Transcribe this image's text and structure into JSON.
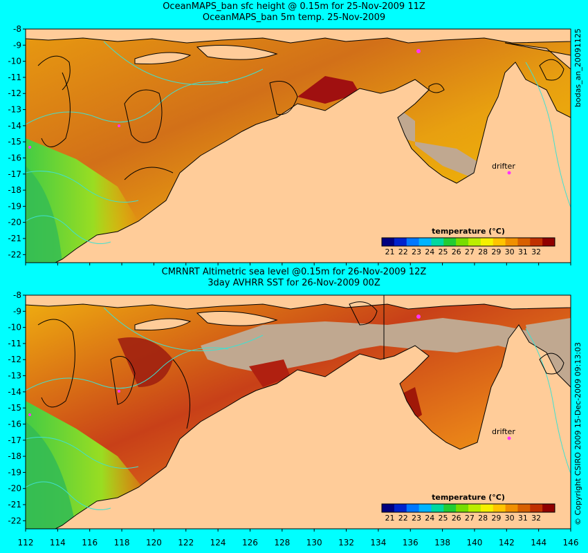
{
  "panels": [
    {
      "title_line1": "OceanMAPS_ban sfc height @ 0.15m for 25-Nov-2009 11Z",
      "title_line2": "OceanMAPS_ban 5m temp. 25-Nov-2009",
      "side_label": "bodas_an_20091125",
      "drifter_label": "drifter"
    },
    {
      "title_line1": "CMRNRT Altimetric sea level  @0.15m  for 26-Nov-2009 12Z",
      "title_line2": "3day AVHRR SST for 26-Nov-2009 00Z",
      "side_label": "© Copyright CSIRO 2009   15-Dec-2009 09:13:03",
      "drifter_label": "drifter"
    }
  ],
  "map": {
    "lon_range": [
      112,
      146
    ],
    "lat_range": [
      -22.5,
      -8
    ],
    "x_ticks": [
      "112",
      "114",
      "116",
      "118",
      "120",
      "122",
      "124",
      "126",
      "128",
      "130",
      "132",
      "134",
      "136",
      "138",
      "140",
      "142",
      "144",
      "146"
    ],
    "y_ticks": [
      "-8",
      "-9",
      "-10",
      "-11",
      "-12",
      "-13",
      "-14",
      "-15",
      "-16",
      "-17",
      "-18",
      "-19",
      "-20",
      "-21",
      "-22"
    ]
  },
  "legend": {
    "title": "temperature (°C)",
    "ticks": [
      "21",
      "22",
      "23",
      "24",
      "25",
      "26",
      "27",
      "28",
      "29",
      "30",
      "31",
      "32"
    ],
    "colors": [
      "#000080",
      "#0022cc",
      "#0077ff",
      "#00b4ff",
      "#00d8a0",
      "#22cc33",
      "#77dd00",
      "#bbee00",
      "#f5f000",
      "#ffc400",
      "#f09000",
      "#d86000",
      "#c03000",
      "#900000"
    ]
  },
  "colors": {
    "background": "#00ffff",
    "land": "#ffcc99",
    "shelf_mask": "#c0a890",
    "contour": "#40e0d0",
    "drifter": "#ff33ff"
  }
}
